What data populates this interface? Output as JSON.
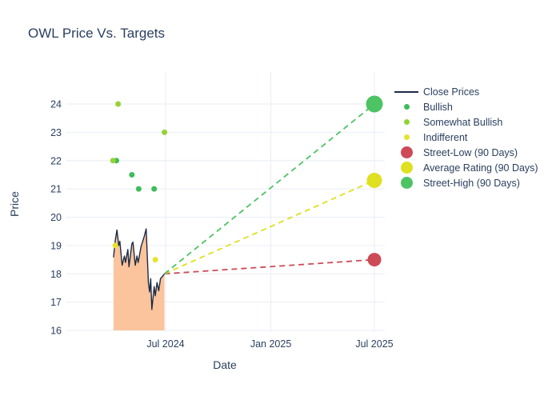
{
  "chart_data": {
    "type": "line",
    "title": "OWL Price Vs. Targets",
    "xlabel": "Date",
    "ylabel": "Price",
    "ylim": [
      15.8,
      25.1
    ],
    "yticks": [
      16,
      17,
      18,
      19,
      20,
      21,
      22,
      23,
      24
    ],
    "xticks": [
      {
        "label": "Jul 2024",
        "date": "2024-07-01"
      },
      {
        "label": "Jan 2025",
        "date": "2025-01-01"
      },
      {
        "label": "Jul 2025",
        "date": "2025-07-01"
      }
    ],
    "grid": true,
    "legend_position": "right",
    "colors": {
      "text": "#2a3f5f",
      "gridline": "#e9eef6",
      "close_line": "#1d2b45",
      "close_fill": "#fbc49c",
      "bullish": "#3dbd5a",
      "somewhat_bullish": "#94d235",
      "indifferent": "#e5e32c",
      "street_low": "#cd4a57",
      "average_rating": "#dfe020",
      "street_high": "#4dc364"
    },
    "series": {
      "close_prices": {
        "name": "Close Prices",
        "line_color": "#1d2b45",
        "fill_color": "#fbc49c",
        "points": [
          {
            "date": "2024-04-01",
            "price": 18.58
          },
          {
            "date": "2024-04-04",
            "price": 19.18
          },
          {
            "date": "2024-04-07",
            "price": 19.55
          },
          {
            "date": "2024-04-10",
            "price": 19.0
          },
          {
            "date": "2024-04-12",
            "price": 19.15
          },
          {
            "date": "2024-04-16",
            "price": 18.3
          },
          {
            "date": "2024-04-20",
            "price": 18.63
          },
          {
            "date": "2024-04-22",
            "price": 18.4
          },
          {
            "date": "2024-04-26",
            "price": 18.86
          },
          {
            "date": "2024-04-28",
            "price": 18.25
          },
          {
            "date": "2024-05-03",
            "price": 19.05
          },
          {
            "date": "2024-05-05",
            "price": 19.12
          },
          {
            "date": "2024-05-09",
            "price": 18.3
          },
          {
            "date": "2024-05-12",
            "price": 18.63
          },
          {
            "date": "2024-05-14",
            "price": 18.4
          },
          {
            "date": "2024-05-19",
            "price": 18.96
          },
          {
            "date": "2024-05-25",
            "price": 19.34
          },
          {
            "date": "2024-05-28",
            "price": 19.59
          },
          {
            "date": "2024-06-01",
            "price": 17.69
          },
          {
            "date": "2024-06-03",
            "price": 17.36
          },
          {
            "date": "2024-06-05",
            "price": 17.83
          },
          {
            "date": "2024-06-07",
            "price": 16.74
          },
          {
            "date": "2024-06-11",
            "price": 17.55
          },
          {
            "date": "2024-06-13",
            "price": 17.22
          },
          {
            "date": "2024-06-16",
            "price": 17.69
          },
          {
            "date": "2024-06-19",
            "price": 17.4
          },
          {
            "date": "2024-06-22",
            "price": 17.83
          },
          {
            "date": "2024-06-29",
            "price": 18.0
          }
        ]
      },
      "ratings": [
        {
          "name": "Bullish",
          "color": "#3dbd5a",
          "marker_size": 3.5,
          "points": [
            {
              "date": "2024-04-06",
              "price": 22.0
            },
            {
              "date": "2024-05-03",
              "price": 21.5
            },
            {
              "date": "2024-05-15",
              "price": 21.0
            },
            {
              "date": "2024-06-11",
              "price": 21.0
            }
          ]
        },
        {
          "name": "Somewhat Bullish",
          "color": "#94d235",
          "marker_size": 3.5,
          "points": [
            {
              "date": "2024-03-31",
              "price": 22.0
            },
            {
              "date": "2024-04-09",
              "price": 24.0
            },
            {
              "date": "2024-06-29",
              "price": 23.0
            }
          ]
        },
        {
          "name": "Indifferent",
          "color": "#e5e32c",
          "marker_size": 3.5,
          "points": [
            {
              "date": "2024-04-04",
              "price": 19.0
            },
            {
              "date": "2024-06-13",
              "price": 18.5
            }
          ]
        }
      ],
      "projections": [
        {
          "name": "Street-Low (90 Days)",
          "color": "#cd4a57",
          "marker_size": 8.5,
          "from": {
            "date": "2024-06-29",
            "price": 18.0
          },
          "to": {
            "date": "2025-07-01",
            "price": 18.5
          }
        },
        {
          "name": "Average Rating (90 Days)",
          "color": "#dfe020",
          "marker_size": 9.5,
          "from": {
            "date": "2024-06-29",
            "price": 18.0
          },
          "to": {
            "date": "2025-07-01",
            "price": 21.3
          }
        },
        {
          "name": "Street-High (90 Days)",
          "color": "#4dc364",
          "marker_size": 10.5,
          "from": {
            "date": "2024-06-29",
            "price": 18.0
          },
          "to": {
            "date": "2025-07-01",
            "price": 24.0
          }
        }
      ]
    },
    "legend": [
      {
        "label": "Close Prices",
        "marker": "line",
        "color": "#1d2b45"
      },
      {
        "label": "Bullish",
        "marker": "dot-small",
        "color": "#3dbd5a"
      },
      {
        "label": "Somewhat Bullish",
        "marker": "dot-small",
        "color": "#94d235"
      },
      {
        "label": "Indifferent",
        "marker": "dot-small",
        "color": "#e5e32c"
      },
      {
        "label": "Street-Low (90 Days)",
        "marker": "dot-large",
        "color": "#cd4a57"
      },
      {
        "label": "Average Rating (90 Days)",
        "marker": "dot-large",
        "color": "#dfe020"
      },
      {
        "label": "Street-High (90 Days)",
        "marker": "dot-large",
        "color": "#4dc364"
      }
    ]
  }
}
